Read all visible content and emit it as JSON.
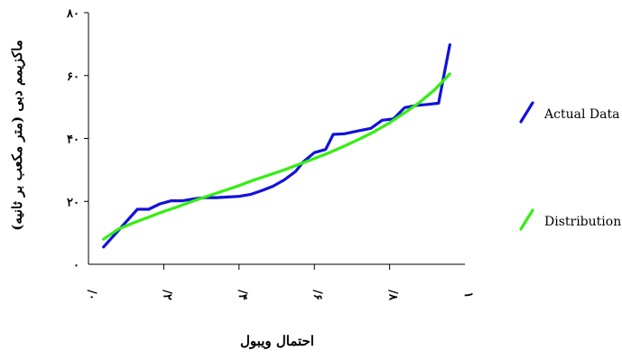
{
  "chart_data": {
    "type": "line",
    "xlabel": "احتمال ویبول",
    "ylabel": "ماکزیمم دبی (متر مکعب بر ثانیه)",
    "xlim": [
      0,
      1
    ],
    "ylim": [
      0,
      80
    ],
    "y_ticks": [
      {
        "value": 0,
        "label": "۰"
      },
      {
        "value": 20,
        "label": "۲۰"
      },
      {
        "value": 40,
        "label": "۴۰"
      },
      {
        "value": 60,
        "label": "۶۰"
      },
      {
        "value": 80,
        "label": "۸۰"
      }
    ],
    "x_ticks": [
      {
        "value": 0,
        "label": "/۰"
      },
      {
        "value": 0.2,
        "label": "/۲"
      },
      {
        "value": 0.4,
        "label": "/۴"
      },
      {
        "value": 0.6,
        "label": "/۶"
      },
      {
        "value": 0.8,
        "label": "/۸"
      },
      {
        "value": 1.0,
        "label": "۱"
      }
    ],
    "grid": false,
    "legend": "right",
    "series": [
      {
        "name": "Actual Data",
        "color": "#1111dd",
        "points": [
          [
            0.04,
            5.5
          ],
          [
            0.07,
            9.5
          ],
          [
            0.1,
            13.5
          ],
          [
            0.13,
            17.5
          ],
          [
            0.16,
            17.5
          ],
          [
            0.19,
            19.2
          ],
          [
            0.22,
            20.2
          ],
          [
            0.25,
            20.2
          ],
          [
            0.28,
            20.8
          ],
          [
            0.31,
            21.2
          ],
          [
            0.34,
            21.2
          ],
          [
            0.37,
            21.4
          ],
          [
            0.4,
            21.6
          ],
          [
            0.43,
            22.2
          ],
          [
            0.46,
            23.4
          ],
          [
            0.49,
            24.8
          ],
          [
            0.52,
            26.8
          ],
          [
            0.55,
            29.5
          ],
          [
            0.57,
            32.5
          ],
          [
            0.6,
            35.5
          ],
          [
            0.63,
            36.5
          ],
          [
            0.65,
            41.3
          ],
          [
            0.68,
            41.5
          ],
          [
            0.72,
            42.5
          ],
          [
            0.75,
            43.2
          ],
          [
            0.78,
            45.8
          ],
          [
            0.81,
            46.2
          ],
          [
            0.84,
            49.8
          ],
          [
            0.87,
            50.5
          ],
          [
            0.9,
            50.8
          ],
          [
            0.93,
            51.2
          ],
          [
            0.96,
            69.8
          ]
        ]
      },
      {
        "name": "Distribution",
        "color": "#33ee11",
        "points": [
          [
            0.04,
            8.0
          ],
          [
            0.08,
            11.2
          ],
          [
            0.12,
            13.2
          ],
          [
            0.16,
            15.0
          ],
          [
            0.2,
            16.8
          ],
          [
            0.24,
            18.4
          ],
          [
            0.28,
            20.2
          ],
          [
            0.32,
            21.8
          ],
          [
            0.36,
            23.4
          ],
          [
            0.4,
            25.0
          ],
          [
            0.44,
            26.8
          ],
          [
            0.48,
            28.4
          ],
          [
            0.52,
            30.0
          ],
          [
            0.56,
            31.8
          ],
          [
            0.6,
            33.6
          ],
          [
            0.64,
            35.5
          ],
          [
            0.68,
            37.6
          ],
          [
            0.72,
            39.8
          ],
          [
            0.76,
            42.2
          ],
          [
            0.8,
            45.0
          ],
          [
            0.84,
            48.2
          ],
          [
            0.88,
            51.5
          ],
          [
            0.92,
            55.5
          ],
          [
            0.96,
            60.5
          ]
        ]
      }
    ]
  }
}
